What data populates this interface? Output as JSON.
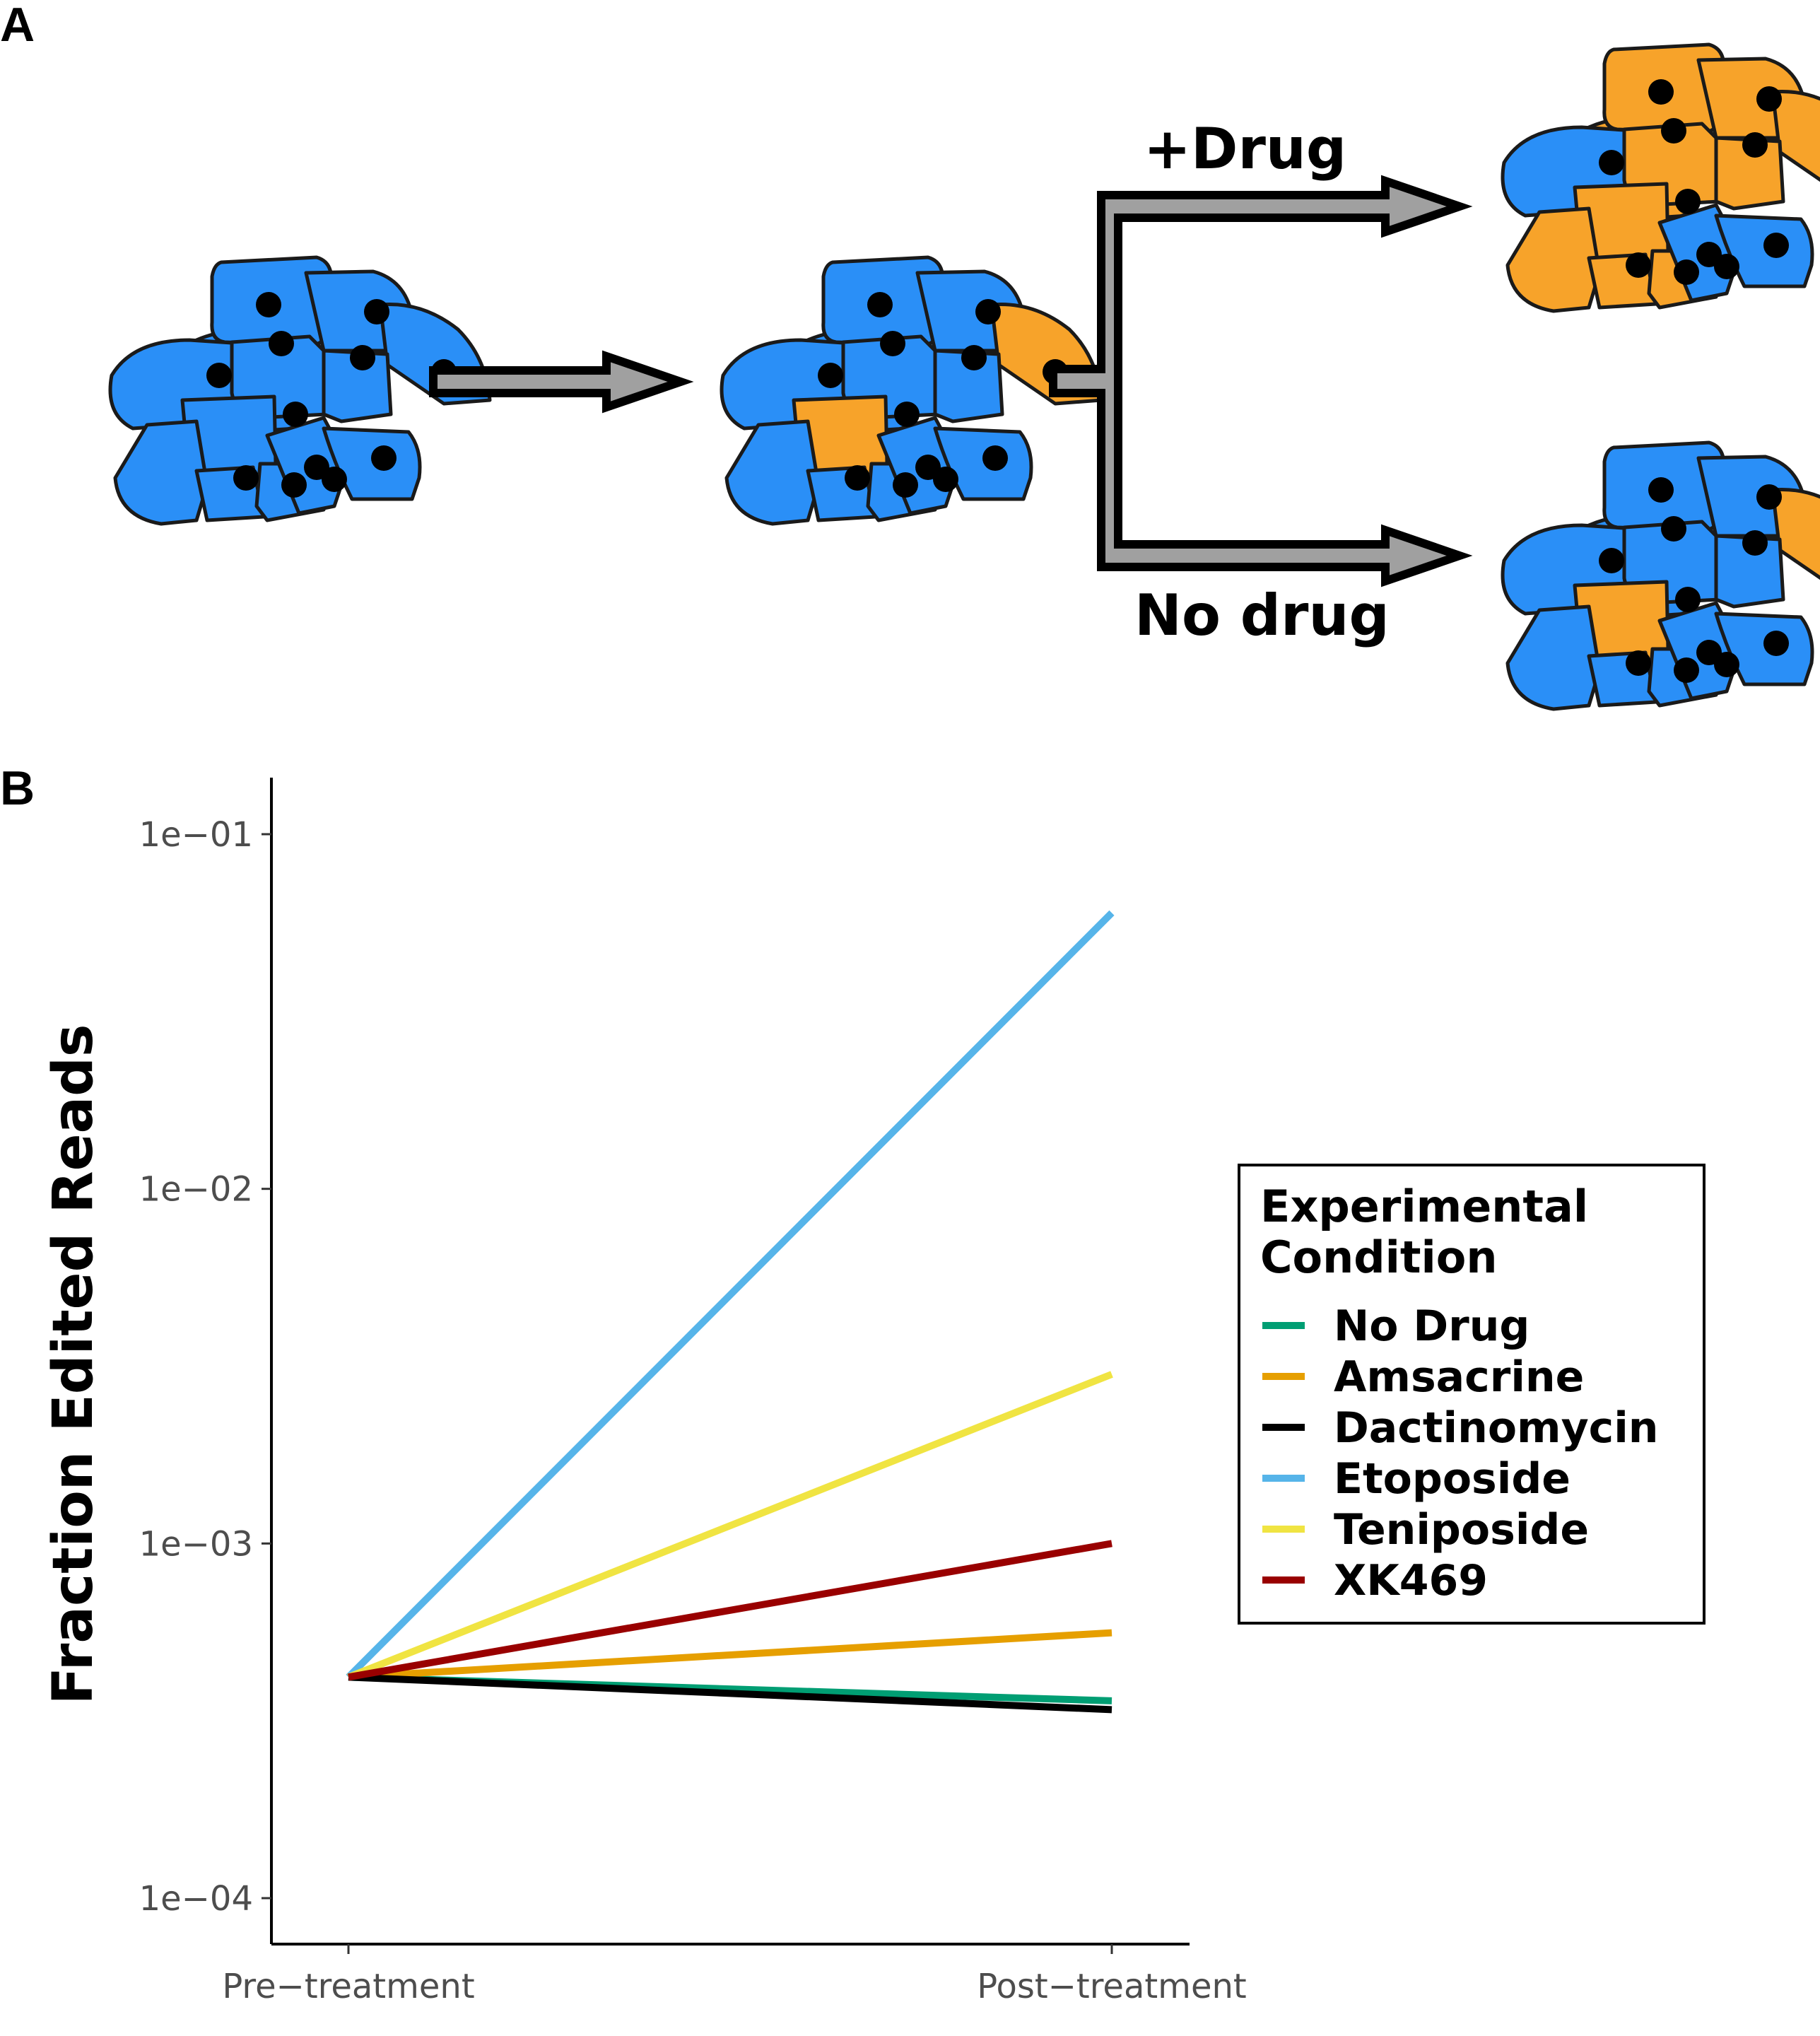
{
  "panels": {
    "a_label": "A",
    "b_label": "B"
  },
  "schematic": {
    "drug_label": "+Drug",
    "no_drug_label": "No drug",
    "colors": {
      "unedited_cell": "#2a8ff7",
      "edited_cell": "#f7a32a",
      "arrow_fill": "#a0a0a0"
    }
  },
  "chart_data": {
    "type": "line",
    "title": "",
    "xlabel": "",
    "ylabel": "Fraction Edited Reads",
    "y_scale": "log10",
    "ylim": [
      0.0001,
      0.1
    ],
    "x": [
      "Pre-treatment",
      "Post-treatment"
    ],
    "x_tick_labels": [
      "Pre−treatment",
      "Post−treatment"
    ],
    "y_ticks": [
      0.0001,
      0.001,
      0.01,
      0.1
    ],
    "y_tick_labels": [
      "1e−04",
      "1e−03",
      "1e−02",
      "1e−01"
    ],
    "grid": false,
    "legend": {
      "title": "Experimental Condition",
      "placement": "right"
    },
    "series": [
      {
        "name": "No Drug",
        "color": "#009E73",
        "values": [
          0.00042,
          0.00036
        ]
      },
      {
        "name": "Amsacrine",
        "color": "#E69F00",
        "values": [
          0.00042,
          0.00056
        ]
      },
      {
        "name": "Dactinomycin",
        "color": "#000000",
        "values": [
          0.00042,
          0.00034
        ]
      },
      {
        "name": "Etoposide",
        "color": "#56B4E9",
        "values": [
          0.00042,
          0.06
        ]
      },
      {
        "name": "Teniposide",
        "color": "#F0E442",
        "values": [
          0.00042,
          0.003
        ]
      },
      {
        "name": "XK469",
        "color": "#990000",
        "values": [
          0.00042,
          0.001
        ]
      }
    ]
  }
}
